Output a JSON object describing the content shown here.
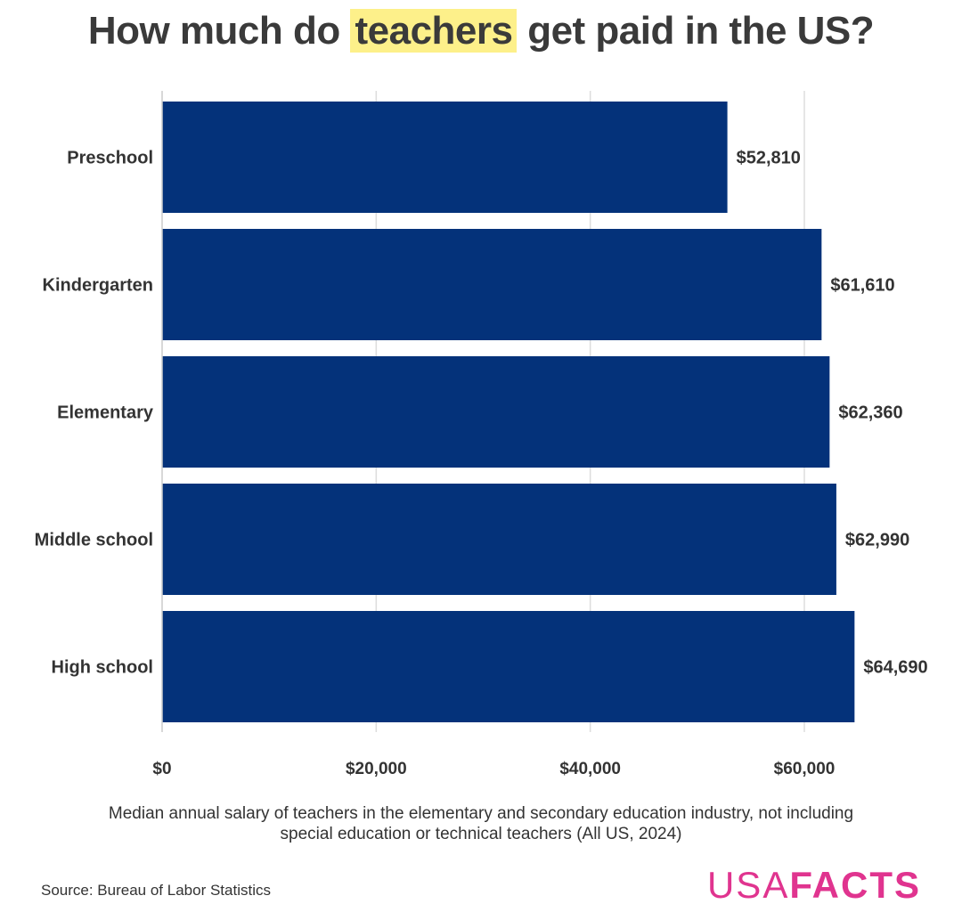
{
  "title": {
    "before": "How much do ",
    "highlight": "teachers",
    "after": " get paid in the US?"
  },
  "chart_data": {
    "type": "bar",
    "orientation": "horizontal",
    "categories": [
      "Preschool",
      "Kindergarten",
      "Elementary",
      "Middle school",
      "High school"
    ],
    "values": [
      52810,
      61610,
      62360,
      62990,
      64690
    ],
    "value_labels": [
      "$52,810",
      "$61,610",
      "$62,360",
      "$62,990",
      "$64,690"
    ],
    "xlim": [
      0,
      70000
    ],
    "xticks": [
      0,
      20000,
      40000,
      60000
    ],
    "xtick_labels": [
      "$0",
      "$20,000",
      "$40,000",
      "$60,000"
    ],
    "grid": true,
    "bar_color": "#04327a",
    "grid_color": "#dddddd"
  },
  "subtitle": "Median annual salary of teachers in the elementary and secondary education industry, not including special education or technical teachers (All US, 2024)",
  "source": "Source: Bureau of Labor Statistics",
  "logo": {
    "part1": "USA",
    "part2": "FACTS",
    "color": "#e0348f"
  }
}
